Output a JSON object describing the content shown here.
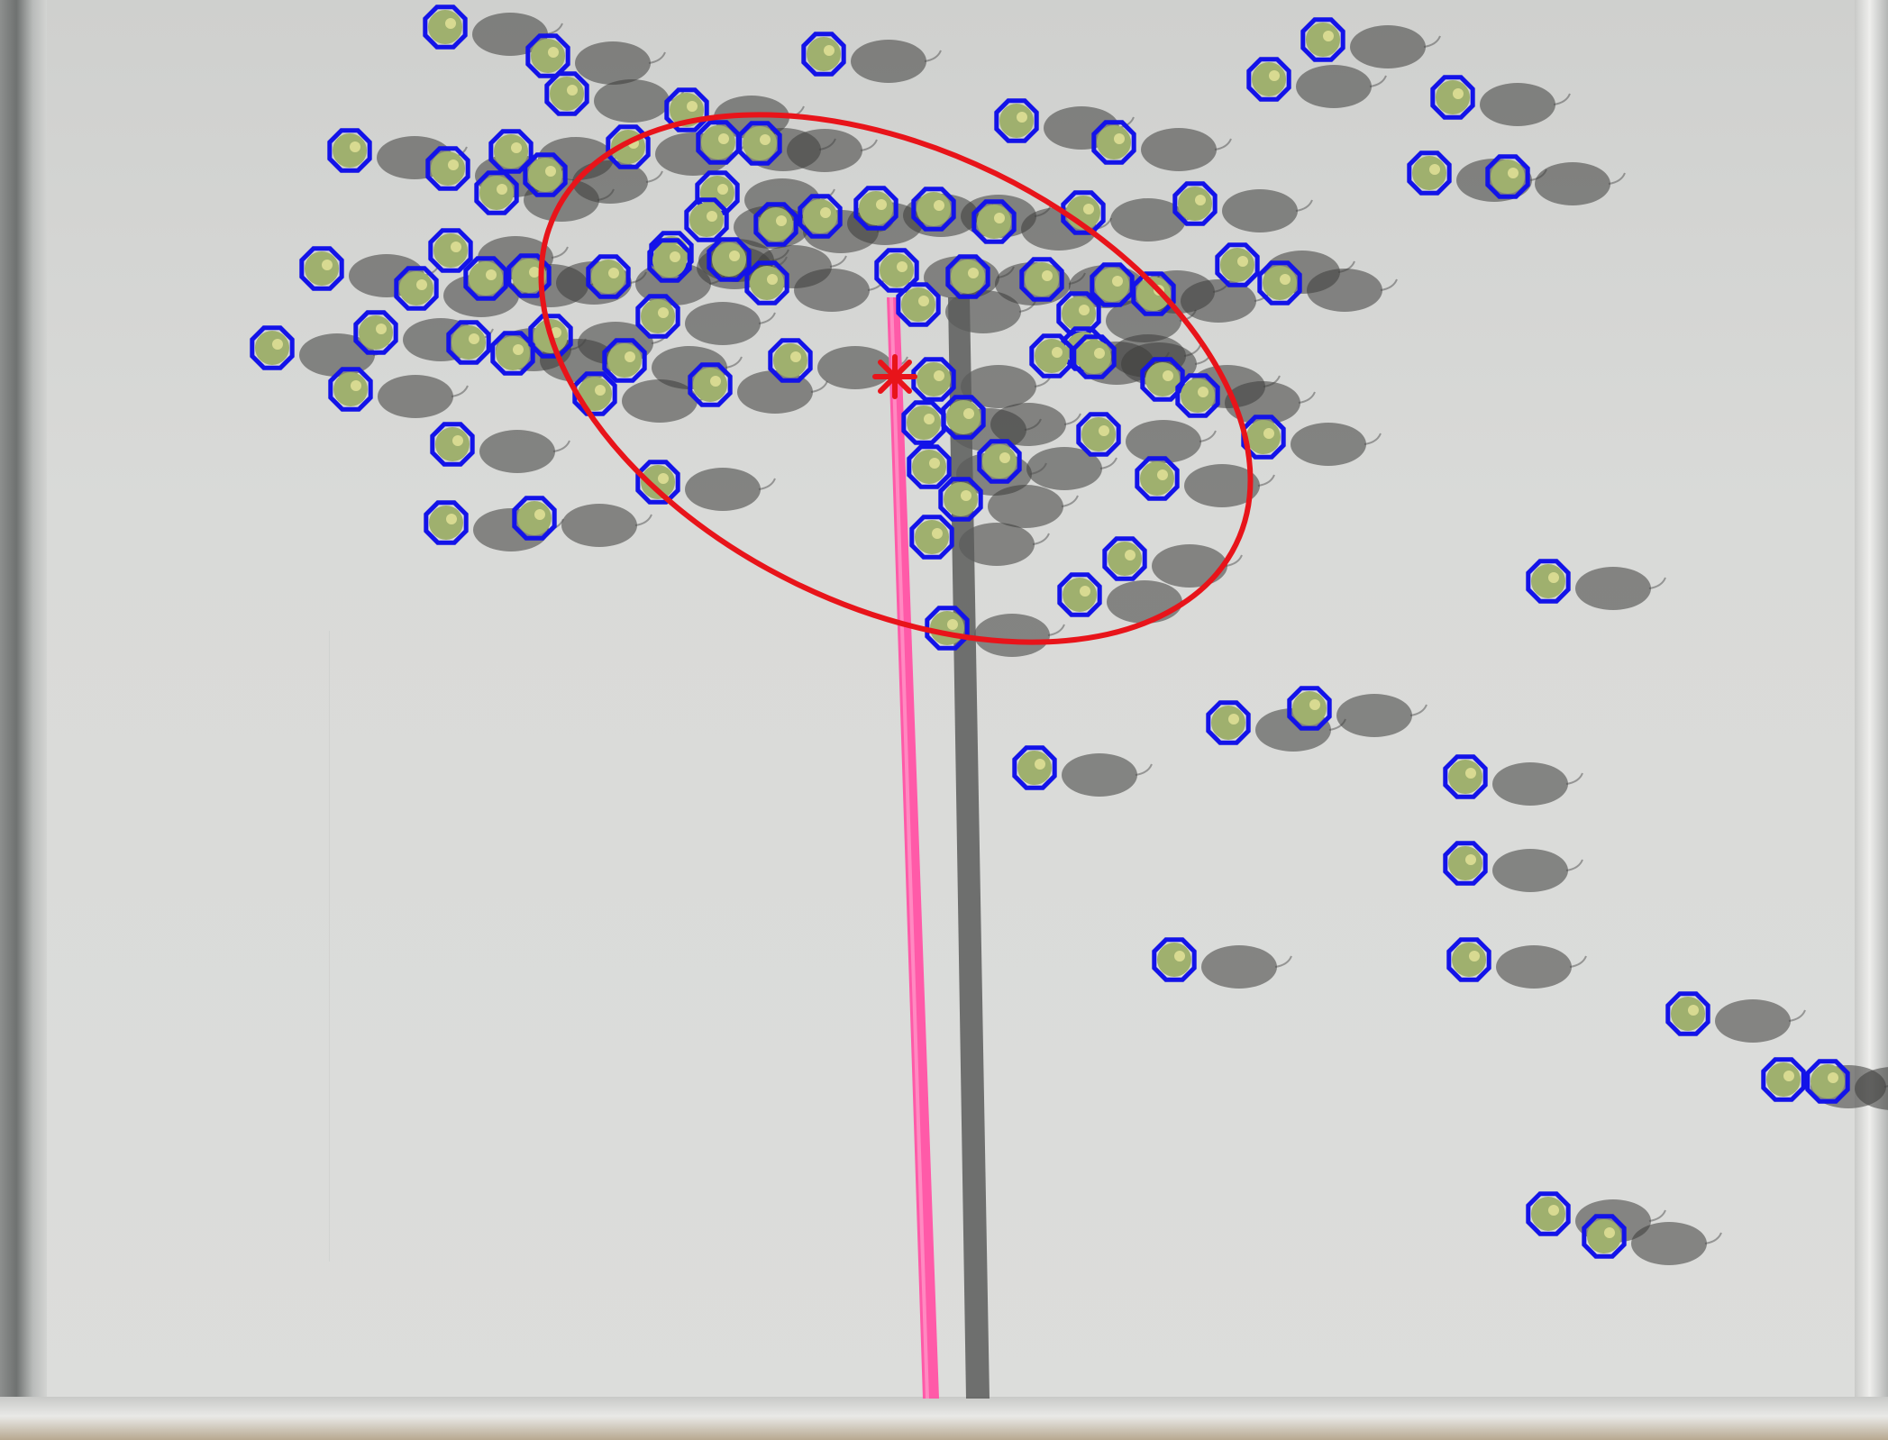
{
  "colors": {
    "board": "#dcdddb",
    "robot_marker": "#1313e8",
    "robot_body": "#9fb06e",
    "ellipse": "#e8141a",
    "centroid": "#e8141a",
    "obstacle_bar": "#ff5aa8",
    "obstacle_shadow": "#565856"
  },
  "icons": {
    "robot": "octagon-robot-marker",
    "centroid": "asterisk-centroid-marker"
  },
  "robot_count": 94
}
